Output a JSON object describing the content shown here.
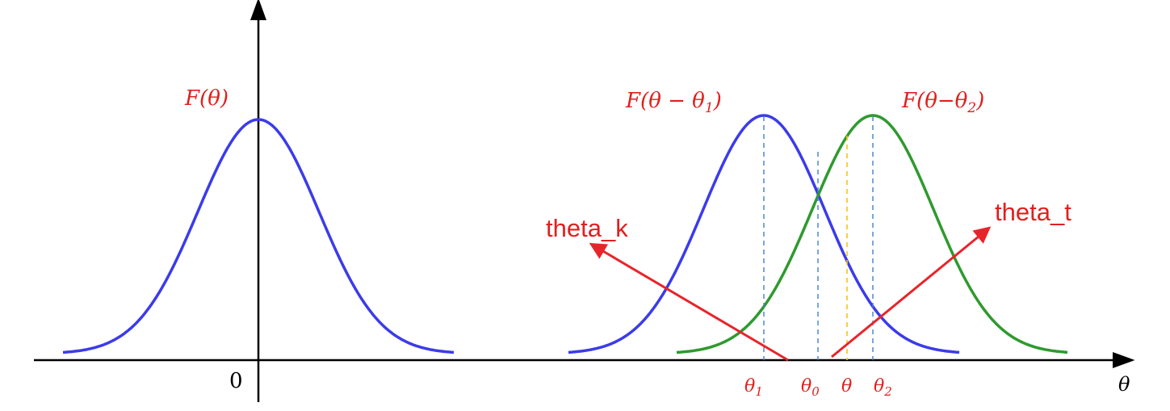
{
  "colors": {
    "axis": "#000000",
    "curve_blue": "#3b3bea",
    "curve_green": "#2e9a2e",
    "guide_blue": "#3f7fd0",
    "guide_yellow": "#f0c419",
    "label_red": "#e0201e",
    "arrow_red": "#e8242b"
  },
  "axes": {
    "origin_label": "0",
    "x_axis_label": "θ"
  },
  "curves": {
    "base": {
      "label_name": "F",
      "label_arg": "(θ)",
      "center_label": "0"
    },
    "shifted_1": {
      "label_name": "F",
      "label_arg": "(θ − θ",
      "label_sub": "1",
      "label_close": ")"
    },
    "shifted_2": {
      "label_name": "F",
      "label_arg": "(θ−θ",
      "label_sub": "2",
      "label_close": ")"
    }
  },
  "ticks": [
    {
      "symbol": "θ",
      "sub": "1"
    },
    {
      "symbol": "θ",
      "sub": "0"
    },
    {
      "symbol": "θ",
      "sub": ""
    },
    {
      "symbol": "θ",
      "sub": "2"
    }
  ],
  "annotations": {
    "left_arrow_label": "theta_k",
    "right_arrow_label": "theta_t"
  },
  "icons": {
    "arrowhead": "arrow-icon"
  }
}
